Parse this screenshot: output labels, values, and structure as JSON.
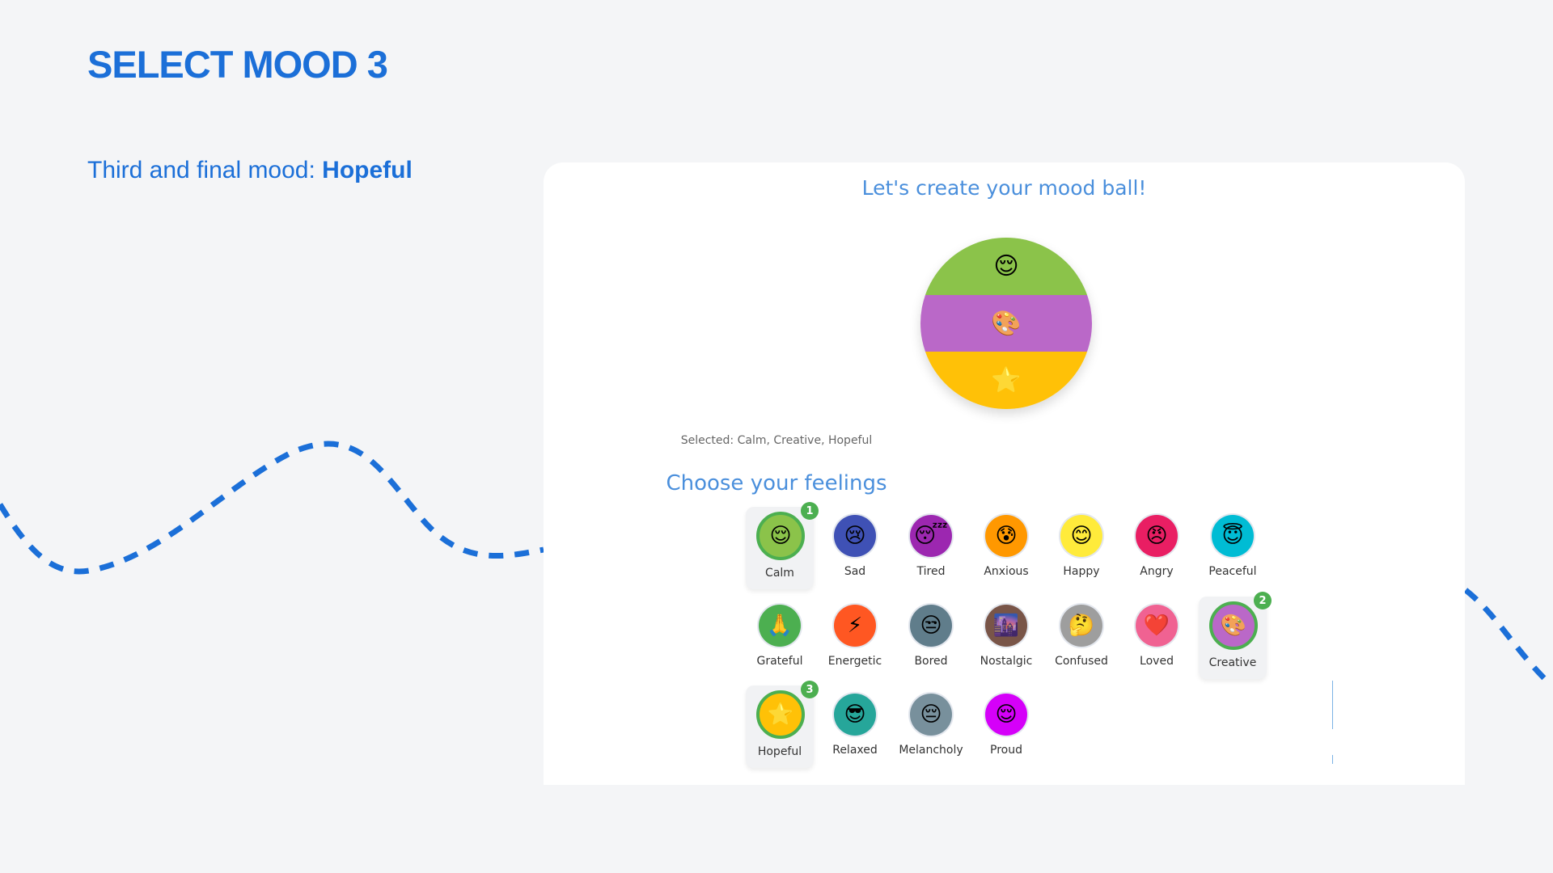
{
  "header": {
    "title": "SELECT MOOD 3",
    "subtitle_prefix": "Third and final mood: ",
    "subtitle_mood": "Hopeful"
  },
  "card": {
    "title": "Let's create your mood ball!",
    "ball_bands": [
      {
        "mood": "Calm",
        "emoji": "😌",
        "color": "#8bc34a"
      },
      {
        "mood": "Creative",
        "emoji": "🎨",
        "color": "#ba68c8"
      },
      {
        "mood": "Hopeful",
        "emoji": "🌟",
        "color": "#ffc107"
      }
    ],
    "selected_text": "Selected: Calm, Creative, Hopeful",
    "choose_title": "Choose your feelings"
  },
  "moods": [
    {
      "label": "Calm",
      "emoji": "😌",
      "color": "#8bc34a",
      "order": 1
    },
    {
      "label": "Sad",
      "emoji": "😢",
      "color": "#3f51b5"
    },
    {
      "label": "Tired",
      "emoji": "😴",
      "color": "#9c27b0"
    },
    {
      "label": "Anxious",
      "emoji": "😰",
      "color": "#ff9800"
    },
    {
      "label": "Happy",
      "emoji": "😊",
      "color": "#ffeb3b"
    },
    {
      "label": "Angry",
      "emoji": "😠",
      "color": "#e91e63"
    },
    {
      "label": "Peaceful",
      "emoji": "😇",
      "color": "#00bcd4"
    },
    {
      "label": "Grateful",
      "emoji": "🙏",
      "color": "#4caf50"
    },
    {
      "label": "Energetic",
      "emoji": "⚡",
      "color": "#ff5722"
    },
    {
      "label": "Bored",
      "emoji": "😒",
      "color": "#607d8b"
    },
    {
      "label": "Nostalgic",
      "emoji": "🌆",
      "color": "#795548"
    },
    {
      "label": "Confused",
      "emoji": "🤔",
      "color": "#9e9e9e"
    },
    {
      "label": "Loved",
      "emoji": "❤️",
      "color": "#f06292"
    },
    {
      "label": "Creative",
      "emoji": "🎨",
      "color": "#ba68c8",
      "order": 2
    },
    {
      "label": "Hopeful",
      "emoji": "🌟",
      "color": "#ffc107",
      "order": 3
    },
    {
      "label": "Relaxed",
      "emoji": "😎",
      "color": "#26a69a"
    },
    {
      "label": "Melancholy",
      "emoji": "😔",
      "color": "#78909c"
    },
    {
      "label": "Proud",
      "emoji": "😌",
      "color": "#d500f9"
    }
  ]
}
